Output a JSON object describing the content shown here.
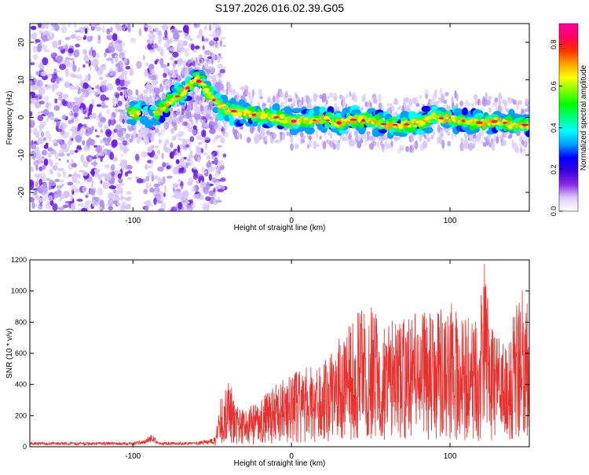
{
  "page_title": "S197.2026.016.02.39.G05",
  "colors": {
    "axis": "#000000",
    "snr_line": "#e8312f",
    "scatter_light": "#d8c8f8",
    "scatter_mid": "#b090f0",
    "scatter_dark": "#6a1ee8",
    "background": "#ffffff"
  },
  "chart_data": [
    {
      "type": "heatmap",
      "title": "S197.2026.016.02.39.G05",
      "xlabel": "Height of straight line (km)",
      "ylabel": "Frequency (Hz)",
      "xlim": [
        -165,
        150
      ],
      "ylim": [
        -25,
        25
      ],
      "x_ticks": [
        -100,
        0,
        100
      ],
      "y_ticks": [
        -20,
        -10,
        0,
        10,
        20
      ],
      "noise_region_km": [
        -165,
        -50
      ],
      "noise_gap_km": [
        -102,
        -92
      ],
      "ridge": {
        "description_x_km": [
          -102,
          -90,
          -80,
          -75,
          -70,
          -65,
          -60,
          -56,
          -52,
          -50,
          -45,
          -40,
          -30,
          -20,
          -10,
          0,
          10,
          20,
          30,
          40,
          50,
          60,
          70,
          80,
          90,
          100,
          110,
          120,
          130,
          140,
          148
        ],
        "freq_hz": [
          1.5,
          0,
          3,
          5,
          6,
          8,
          10,
          9,
          6,
          5,
          3,
          2,
          1,
          0.5,
          0,
          -1,
          -1,
          -0.5,
          -1.5,
          -0.5,
          -1,
          -2,
          -2,
          -1.5,
          0,
          -0.5,
          -1,
          -1.5,
          -1,
          -2,
          -2
        ]
      },
      "colorbar": {
        "label": "Normalized spectral amplitude",
        "range": [
          0.0,
          0.9
        ],
        "ticks": [
          0.0,
          0.2,
          0.4,
          0.6,
          0.8
        ],
        "tick_labels": [
          "0.0",
          "0.2",
          "0.4",
          "0.6",
          "0.8"
        ],
        "colormap": [
          "#ffffff",
          "#e0ccff",
          "#8a2be2",
          "#3a00e0",
          "#0000ff",
          "#00a0ff",
          "#00ffff",
          "#00ff80",
          "#00ff00",
          "#80ff00",
          "#ffff00",
          "#ffa000",
          "#ff3000",
          "#ff0060",
          "#ff00a0"
        ]
      }
    },
    {
      "type": "line",
      "title": "",
      "xlabel": "Height of straight line (km)",
      "ylabel": "SNR (10 * v/v)",
      "xlim": [
        -165,
        150
      ],
      "ylim": [
        0,
        1200
      ],
      "x_ticks": [
        -100,
        0,
        100
      ],
      "y_ticks": [
        0,
        200,
        400,
        600,
        800,
        1000,
        1200
      ],
      "envelope": {
        "x_km": [
          -165,
          -100,
          -92,
          -88,
          -84,
          -60,
          -48,
          -45,
          -40,
          -35,
          -30,
          -20,
          -10,
          0,
          10,
          20,
          30,
          40,
          50,
          60,
          70,
          80,
          90,
          100,
          110,
          118,
          122,
          126,
          130,
          135,
          140,
          145,
          148,
          150
        ],
        "snr": [
          30,
          30,
          50,
          85,
          30,
          30,
          60,
          300,
          460,
          250,
          220,
          300,
          380,
          450,
          500,
          520,
          700,
          820,
          880,
          760,
          800,
          820,
          880,
          920,
          800,
          760,
          1200,
          760,
          700,
          600,
          860,
          960,
          980,
          900
        ]
      }
    }
  ]
}
